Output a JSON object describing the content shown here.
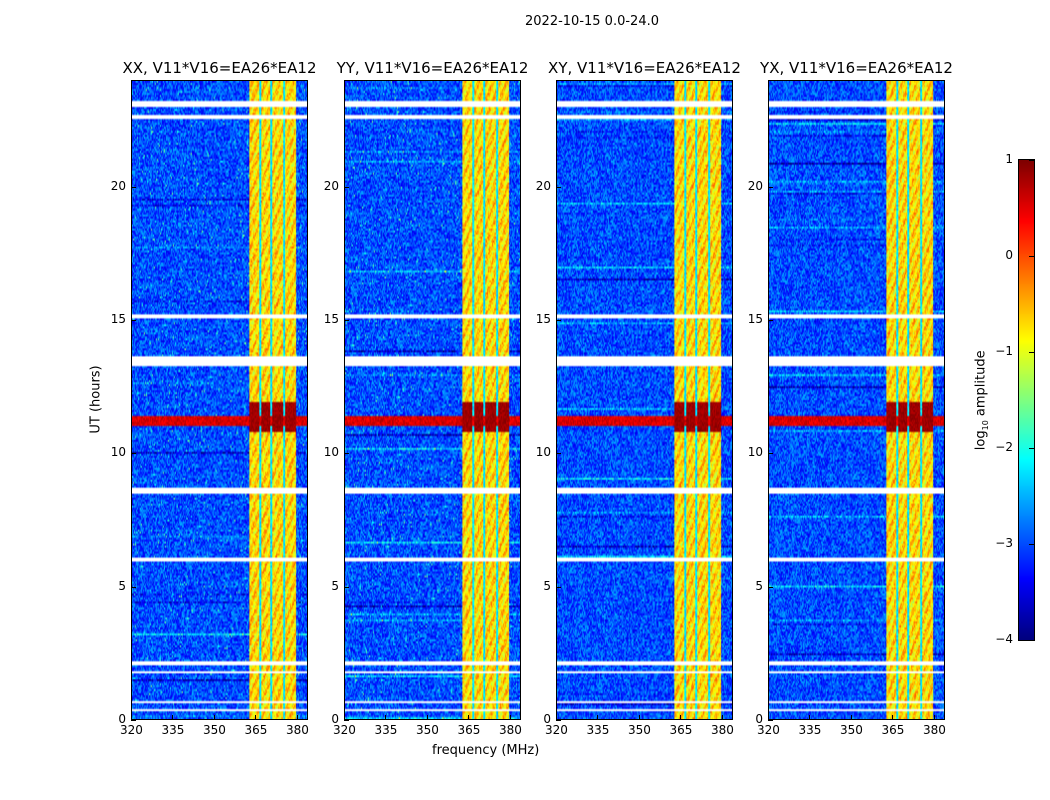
{
  "suptitle": "2022-10-15 0.0-24.0",
  "chart_data": {
    "type": "heatmap",
    "xlabel": "frequency (MHz)",
    "ylabel": "UT (hours)",
    "xlim": [
      320,
      384
    ],
    "ylim": [
      0,
      24
    ],
    "xticks": [
      320,
      335,
      350,
      365,
      380
    ],
    "yticks": [
      0,
      5,
      10,
      15,
      20
    ],
    "panels": [
      {
        "title": "XX, V11*V16=EA26*EA12"
      },
      {
        "title": "YY, V11*V16=EA26*EA12"
      },
      {
        "title": "XY, V11*V16=EA26*EA12"
      },
      {
        "title": "YX, V11*V16=EA26*EA12"
      }
    ],
    "features": {
      "background_log_amp": -3,
      "rfi_band_mhz": [
        363,
        380
      ],
      "rfi_band_log_amp": -0.7,
      "rfi_gap_channels_mhz": [
        367,
        371,
        375.5
      ],
      "strong_rfi_hours": [
        10.8,
        11.9
      ],
      "strong_rfi_log_amp": 1,
      "broadband_rfi_hours": [
        11.0,
        11.4
      ],
      "flagged_hours": [
        [
          23.0,
          23.25
        ],
        [
          22.6,
          22.7
        ],
        [
          13.3,
          13.65
        ],
        [
          8.45,
          8.7
        ],
        [
          5.95,
          6.05
        ],
        [
          2.0,
          2.15
        ],
        [
          1.7,
          1.8
        ],
        [
          0.6,
          0.7
        ],
        [
          0.3,
          0.35
        ],
        [
          18.2,
          18.25
        ],
        [
          16.1,
          16.15
        ],
        [
          15.1,
          15.2
        ]
      ]
    },
    "colorbar": {
      "label": "log10 amplitude",
      "label_base": "log",
      "label_sub": "10",
      "label_rest": " amplitude",
      "range": [
        -4,
        1
      ],
      "ticks": [
        "1",
        "0",
        "−1",
        "−2",
        "−3",
        "−4"
      ],
      "colormap": "jet"
    }
  }
}
